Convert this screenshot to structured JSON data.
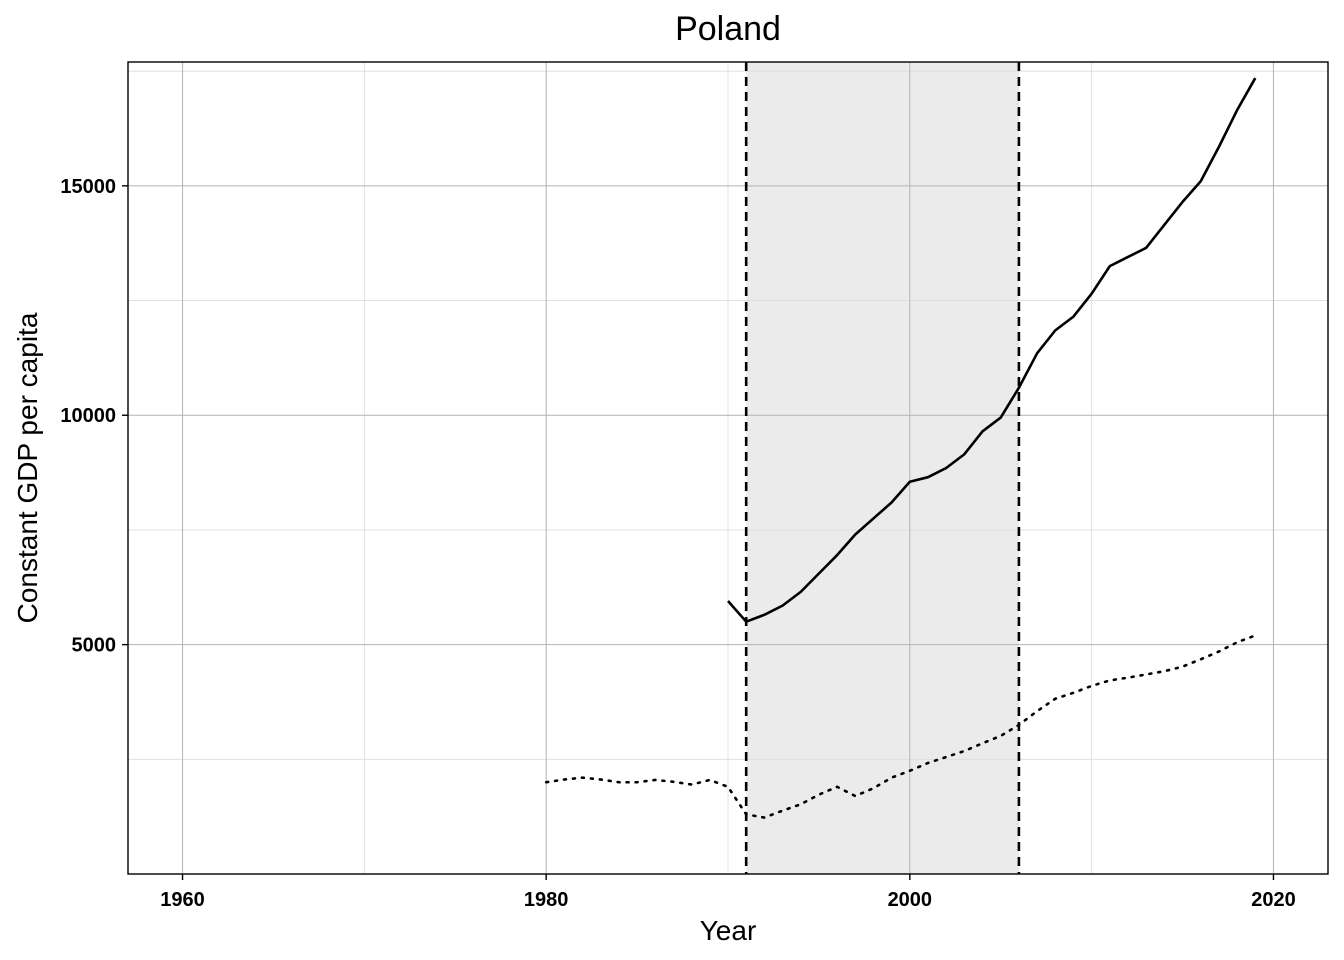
{
  "chart_data": {
    "type": "line",
    "title": "Poland",
    "xlabel": "Year",
    "ylabel": "Constant GDP per capita",
    "xlim": [
      1957,
      2023
    ],
    "ylim": [
      0,
      17700
    ],
    "x_ticks": [
      1960,
      1980,
      2000,
      2020
    ],
    "y_ticks": [
      5000,
      10000,
      15000
    ],
    "grid": true,
    "shaded_region": {
      "x_start": 1991,
      "x_end": 2006,
      "color": "#ebebeb"
    },
    "vertical_lines": [
      1991,
      2006
    ],
    "series": [
      {
        "style": "solid",
        "x": [
          1990,
          1991,
          1992,
          1993,
          1994,
          1995,
          1996,
          1997,
          1998,
          1999,
          2000,
          2001,
          2002,
          2003,
          2004,
          2005,
          2006,
          2007,
          2008,
          2009,
          2010,
          2011,
          2012,
          2013,
          2014,
          2015,
          2016,
          2017,
          2018,
          2019
        ],
        "y": [
          5950,
          5500,
          5650,
          5850,
          6150,
          6550,
          6950,
          7400,
          7750,
          8100,
          8550,
          8650,
          8850,
          9150,
          9650,
          9950,
          10600,
          11350,
          11850,
          12150,
          12650,
          13250,
          13450,
          13650,
          14150,
          14650,
          15100,
          15850,
          16650,
          17350
        ]
      },
      {
        "style": "dotted",
        "x": [
          1980,
          1981,
          1982,
          1983,
          1984,
          1985,
          1986,
          1987,
          1988,
          1989,
          1990,
          1991,
          1992,
          1993,
          1994,
          1995,
          1996,
          1997,
          1998,
          1999,
          2000,
          2001,
          2002,
          2003,
          2004,
          2005,
          2006,
          2007,
          2008,
          2009,
          2010,
          2011,
          2012,
          2013,
          2014,
          2015,
          2016,
          2017,
          2018,
          2019
        ],
        "y": [
          2000,
          2060,
          2100,
          2060,
          2000,
          2000,
          2050,
          2010,
          1950,
          2050,
          1900,
          1300,
          1230,
          1380,
          1520,
          1730,
          1900,
          1700,
          1870,
          2100,
          2250,
          2420,
          2550,
          2680,
          2850,
          3010,
          3250,
          3550,
          3820,
          3950,
          4100,
          4220,
          4280,
          4350,
          4420,
          4520,
          4680,
          4850,
          5050,
          5200
        ]
      }
    ]
  }
}
